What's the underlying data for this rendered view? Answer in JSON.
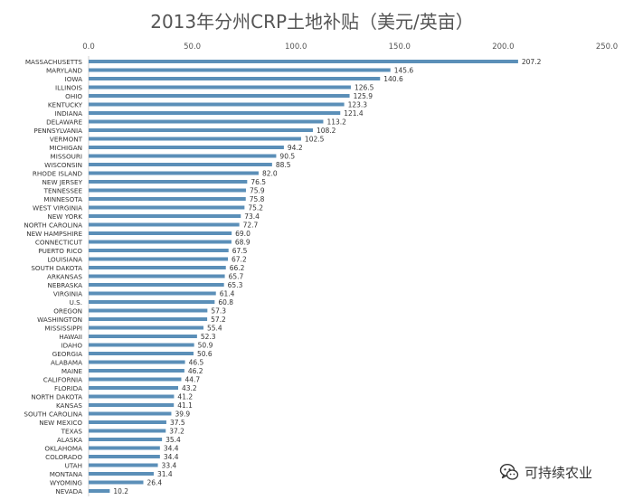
{
  "chart_data": {
    "type": "bar",
    "orientation": "horizontal",
    "title": "2013年分州CRP土地补贴（美元/英亩）",
    "xlim": [
      0,
      250
    ],
    "x_ticks": [
      "0.0",
      "50.0",
      "100.0",
      "150.0",
      "200.0",
      "250.0"
    ],
    "x_axis_position": "top",
    "grid": false,
    "bar_color": "#5b8fb8",
    "categories": [
      "MASSACHUSETTS",
      "MARYLAND",
      "IOWA",
      "ILLINOIS",
      "OHIO",
      "KENTUCKY",
      "INDIANA",
      "DELAWARE",
      "PENNSYLVANIA",
      "VERMONT",
      "MICHIGAN",
      "MISSOURI",
      "WISCONSIN",
      "RHODE ISLAND",
      "NEW JERSEY",
      "TENNESSEE",
      "MINNESOTA",
      "WEST VIRGINIA",
      "NEW YORK",
      "NORTH CAROLINA",
      "NEW HAMPSHIRE",
      "CONNECTICUT",
      "PUERTO RICO",
      "LOUISIANA",
      "SOUTH DAKOTA",
      "ARKANSAS",
      "NEBRASKA",
      "VIRGINIA",
      "U.S.",
      "OREGON",
      "WASHINGTON",
      "MISSISSIPPI",
      "HAWAII",
      "IDAHO",
      "GEORGIA",
      "ALABAMA",
      "MAINE",
      "CALIFORNIA",
      "FLORIDA",
      "NORTH DAKOTA",
      "KANSAS",
      "SOUTH CAROLINA",
      "NEW MEXICO",
      "TEXAS",
      "ALASKA",
      "OKLAHOMA",
      "COLORADO",
      "UTAH",
      "MONTANA",
      "WYOMING",
      "NEVADA"
    ],
    "values": [
      207.2,
      145.6,
      140.6,
      126.5,
      125.9,
      123.3,
      121.4,
      113.2,
      108.2,
      102.5,
      94.2,
      90.5,
      88.5,
      82.0,
      76.5,
      75.9,
      75.8,
      75.2,
      73.4,
      72.7,
      69.0,
      68.9,
      67.5,
      67.2,
      66.2,
      65.7,
      65.3,
      61.4,
      60.8,
      57.3,
      57.2,
      55.4,
      52.3,
      50.9,
      50.6,
      46.5,
      46.2,
      44.7,
      43.2,
      41.2,
      41.1,
      39.9,
      37.5,
      37.2,
      35.4,
      34.4,
      34.4,
      33.4,
      31.4,
      26.4,
      10.2
    ],
    "value_labels": [
      "207.2",
      "145.6",
      "140.6",
      "126.5",
      "125.9",
      "123.3",
      "121.4",
      "113.2",
      "108.2",
      "102.5",
      "94.2",
      "90.5",
      "88.5",
      "82.0",
      "76.5",
      "75.9",
      "75.8",
      "75.2",
      "73.4",
      "72.7",
      "69.0",
      "68.9",
      "67.5",
      "67.2",
      "66.2",
      "65.7",
      "65.3",
      "61.4",
      "60.8",
      "57.3",
      "57.2",
      "55.4",
      "52.3",
      "50.9",
      "50.6",
      "46.5",
      "46.2",
      "44.7",
      "43.2",
      "41.2",
      "41.1",
      "39.9",
      "37.5",
      "37.2",
      "35.4",
      "34.4",
      "34.4",
      "33.4",
      "31.4",
      "26.4",
      "10.2"
    ]
  },
  "watermark": {
    "text": "可持续农业",
    "icon": "wechat-icon"
  }
}
